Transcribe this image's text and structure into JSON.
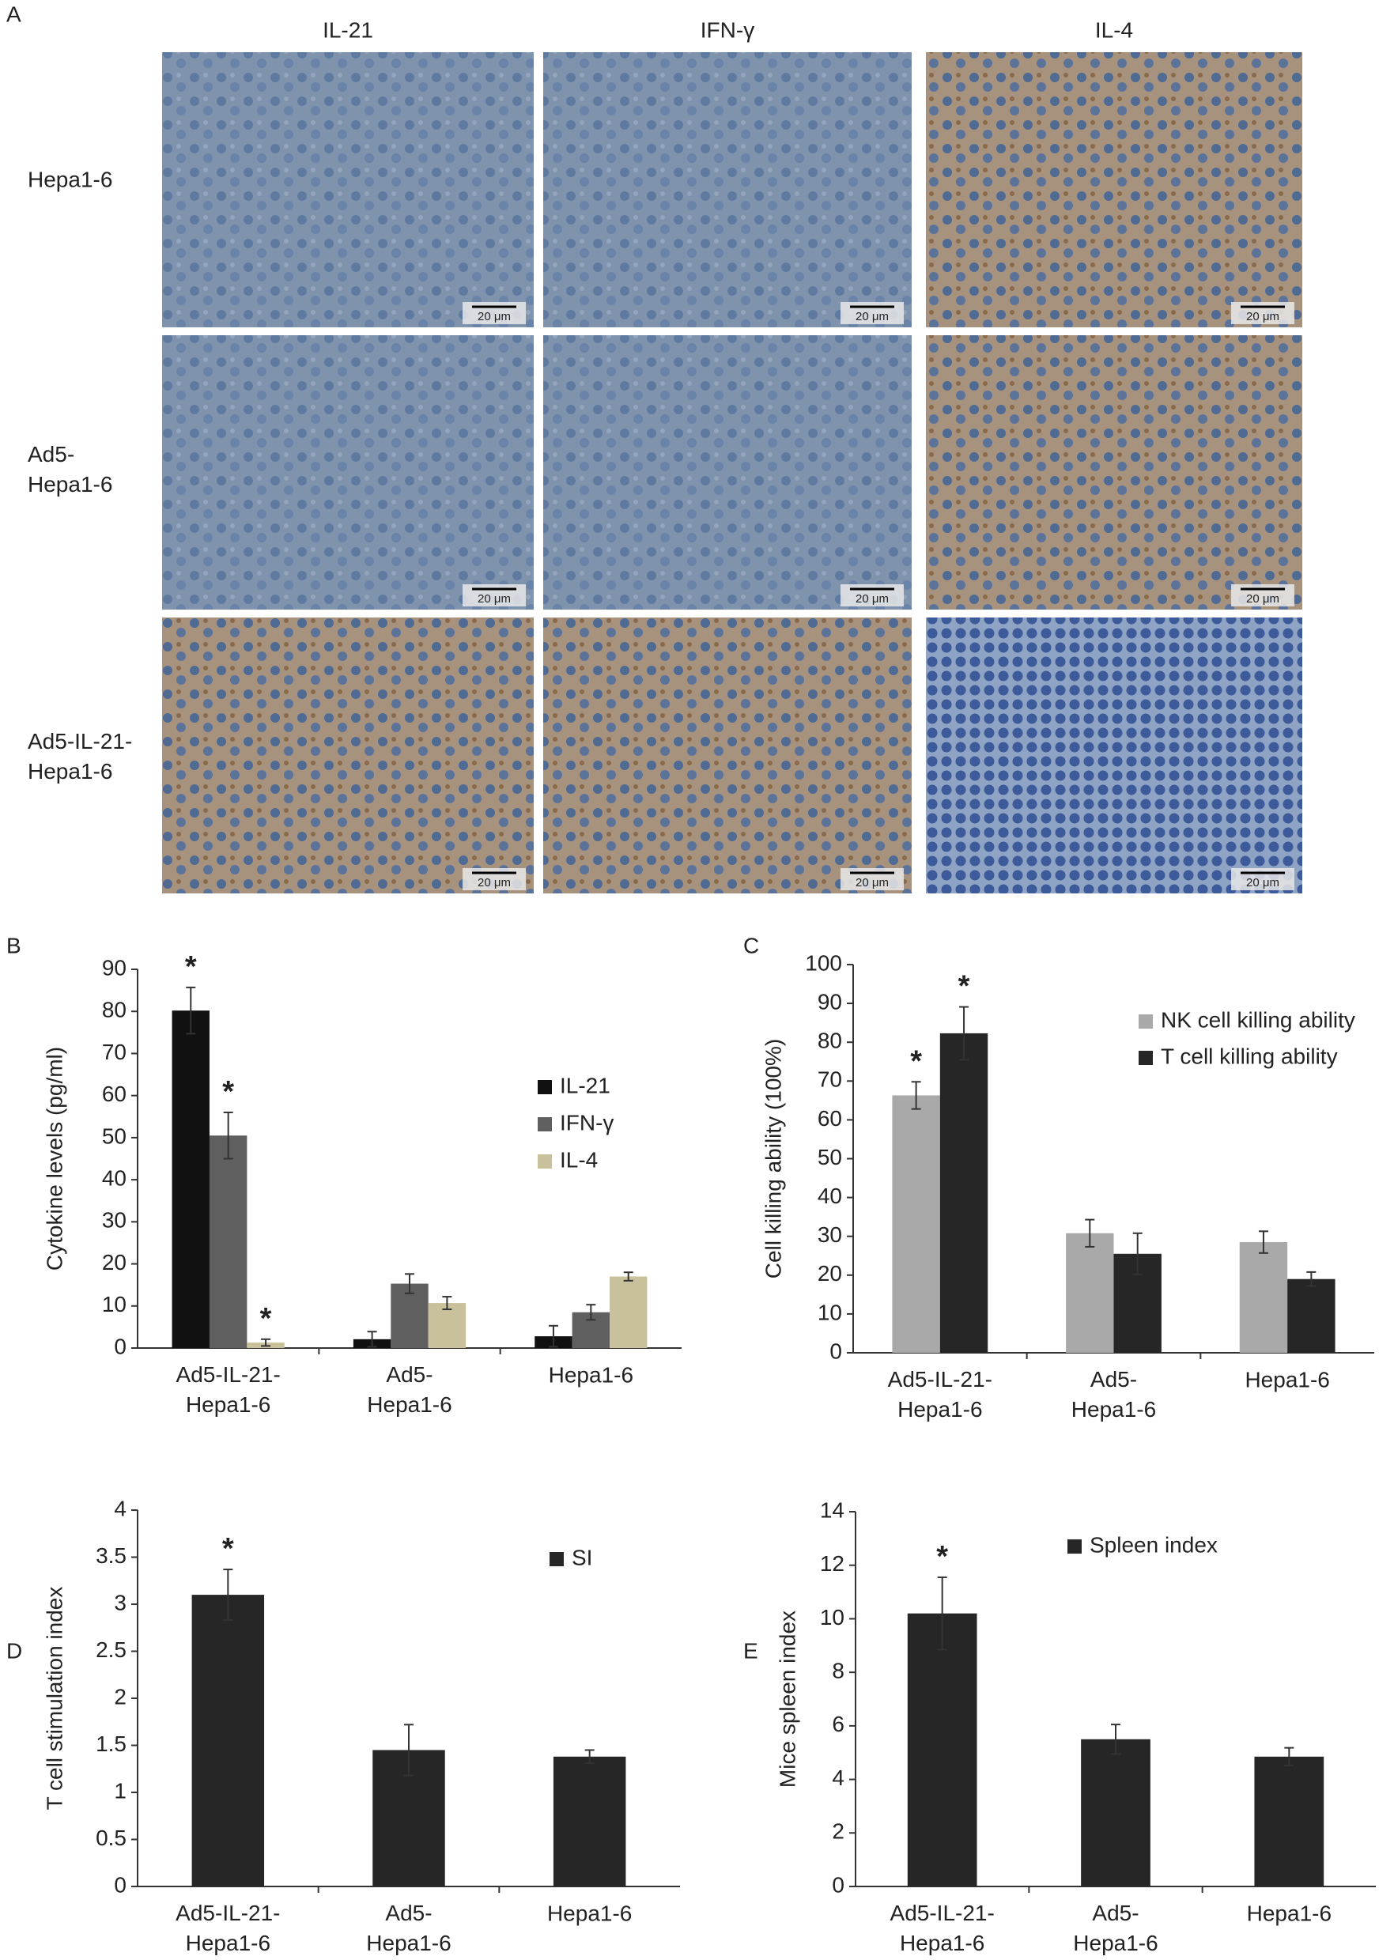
{
  "panel_labels": [
    "A",
    "B",
    "C",
    "D",
    "E"
  ],
  "micrographs": {
    "columns": [
      "IL-21",
      "IFN-γ",
      "IL-4"
    ],
    "rows": [
      "Hepa1-6",
      "Ad5-\nHepa1-6",
      "Ad5-IL-21-\nHepa1-6"
    ],
    "scale_bars": [
      [
        "20 μm",
        "20 μm",
        "20 μm"
      ],
      [
        "20 μm",
        "20 μm",
        "20 μm"
      ],
      [
        "20 μm",
        "20 μm",
        "20 μm"
      ]
    ]
  },
  "chart_data": [
    {
      "type": "bar",
      "y_label": "Cytokine levels (pg/ml)",
      "categories": [
        "Ad5-IL-21-\nHepa1-6",
        "Ad5-\nHepa1-6",
        "Hepa1-6"
      ],
      "series": [
        {
          "name": "IL-21",
          "color": "#111111",
          "values": [
            80.2,
            2.1,
            2.8
          ],
          "errors": [
            5.5,
            1.8,
            2.5
          ],
          "significance": [
            "*",
            null,
            null
          ]
        },
        {
          "name": "IFN-γ",
          "color": "#5f5f5f",
          "values": [
            50.5,
            15.3,
            8.5
          ],
          "errors": [
            5.5,
            2.3,
            1.8
          ],
          "significance": [
            "*",
            null,
            null
          ]
        },
        {
          "name": "IL-4",
          "color": "#c8c19b",
          "values": [
            1.3,
            10.7,
            17
          ],
          "errors": [
            0.8,
            1.5,
            1.0
          ],
          "significance": [
            "*",
            null,
            null
          ]
        }
      ],
      "ylim": [
        0,
        90
      ],
      "yticks": [
        0,
        10,
        20,
        30,
        40,
        50,
        60,
        70,
        80,
        90
      ]
    },
    {
      "type": "bar",
      "y_label": "Cell killing ability (100%)",
      "categories": [
        "Ad5-IL-21-\nHepa1-6",
        "Ad5-\nHepa1-6",
        "Hepa1-6"
      ],
      "series": [
        {
          "name": "NK cell killing ability",
          "color": "#a9a9a9",
          "values": [
            66.3,
            30.8,
            28.5
          ],
          "errors": [
            3.5,
            3.5,
            2.8
          ],
          "significance": [
            "*",
            null,
            null
          ]
        },
        {
          "name": "T cell killing ability",
          "color": "#262626",
          "values": [
            82.3,
            25.5,
            19
          ],
          "errors": [
            6.8,
            5.3,
            1.8
          ],
          "significance": [
            "*",
            null,
            null
          ]
        }
      ],
      "ylim": [
        0,
        100
      ],
      "yticks": [
        0,
        10,
        20,
        30,
        40,
        50,
        60,
        70,
        80,
        90,
        100
      ]
    },
    {
      "type": "bar",
      "y_label": "T cell stimulation index",
      "categories": [
        "Ad5-IL-21-\nHepa1-6",
        "Ad5-\nHepa1-6",
        "Hepa1-6"
      ],
      "series": [
        {
          "name": "SI",
          "color": "#262626",
          "values": [
            3.1,
            1.45,
            1.38
          ],
          "errors": [
            0.27,
            0.27,
            0.07
          ],
          "significance": [
            "*",
            null,
            null
          ]
        }
      ],
      "ylim": [
        0,
        4
      ],
      "yticks": [
        0,
        0.5,
        1,
        1.5,
        2,
        2.5,
        3,
        3.5,
        4
      ]
    },
    {
      "type": "bar",
      "y_label": "Mice spleen index",
      "categories": [
        "Ad5-IL-21-\nHepa1-6",
        "Ad5-\nHepa1-6",
        "Hepa1-6"
      ],
      "series": [
        {
          "name": "Spleen index",
          "color": "#262626",
          "values": [
            10.2,
            5.5,
            4.85
          ],
          "errors": [
            1.35,
            0.55,
            0.33
          ],
          "significance": [
            "*",
            null,
            null
          ]
        }
      ],
      "ylim": [
        0,
        14
      ],
      "yticks": [
        0,
        2,
        4,
        6,
        8,
        10,
        12,
        14
      ]
    }
  ]
}
